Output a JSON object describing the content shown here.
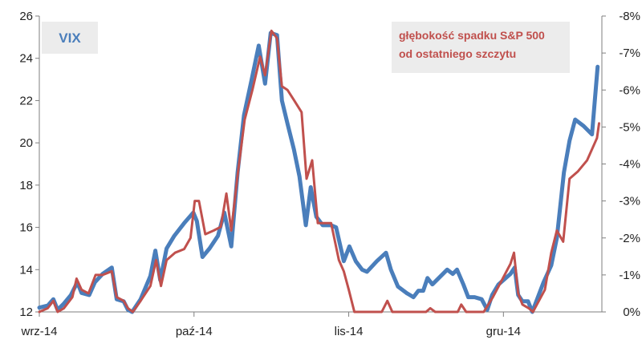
{
  "chart_data": {
    "type": "line",
    "title": "",
    "xlabel": "",
    "ylabel": "",
    "x_ticks": [
      "wrz-14",
      "paź-14",
      "lis-14",
      "gru-14"
    ],
    "x_tick_positions": [
      0,
      22,
      44,
      66
    ],
    "x_range": [
      0,
      80
    ],
    "y_left": {
      "range": [
        12,
        26
      ],
      "ticks": [
        "12",
        "14",
        "16",
        "18",
        "20",
        "22",
        "24",
        "26"
      ]
    },
    "y_right": {
      "range": [
        0,
        -8
      ],
      "ticks": [
        "0%",
        "-1%",
        "-2%",
        "-3%",
        "-4%",
        "-5%",
        "-6%",
        "-7%",
        "-8%"
      ]
    },
    "grid": false,
    "series": [
      {
        "name": "VIX",
        "axis": "left",
        "color": "#4a7ebb",
        "values": [
          [
            0.0,
            12.2
          ],
          [
            1.2,
            12.3
          ],
          [
            2.0,
            12.6
          ],
          [
            2.6,
            12.1
          ],
          [
            3.5,
            12.4
          ],
          [
            4.5,
            12.8
          ],
          [
            5.4,
            13.4
          ],
          [
            6.0,
            12.9
          ],
          [
            7.1,
            12.8
          ],
          [
            7.9,
            13.4
          ],
          [
            9.0,
            13.8
          ],
          [
            10.3,
            14.1
          ],
          [
            11.0,
            12.6
          ],
          [
            12.0,
            12.5
          ],
          [
            12.6,
            12.1
          ],
          [
            13.2,
            12.0
          ],
          [
            14.4,
            12.6
          ],
          [
            15.8,
            13.7
          ],
          [
            16.5,
            14.9
          ],
          [
            17.2,
            13.5
          ],
          [
            18.1,
            15.0
          ],
          [
            19.2,
            15.6
          ],
          [
            20.6,
            16.2
          ],
          [
            21.9,
            16.7
          ],
          [
            22.4,
            16.3
          ],
          [
            23.2,
            14.6
          ],
          [
            24.2,
            15.0
          ],
          [
            25.4,
            15.6
          ],
          [
            26.3,
            16.7
          ],
          [
            27.3,
            15.1
          ],
          [
            28.2,
            18.6
          ],
          [
            29.1,
            21.3
          ],
          [
            30.2,
            23.0
          ],
          [
            31.2,
            24.6
          ],
          [
            32.1,
            22.8
          ],
          [
            32.9,
            25.2
          ],
          [
            33.8,
            25.1
          ],
          [
            34.5,
            22.0
          ],
          [
            35.3,
            20.9
          ],
          [
            36.2,
            19.7
          ],
          [
            37.0,
            18.4
          ],
          [
            37.9,
            16.1
          ],
          [
            38.6,
            17.9
          ],
          [
            39.4,
            16.5
          ],
          [
            40.3,
            16.1
          ],
          [
            41.5,
            16.1
          ],
          [
            42.2,
            16.0
          ],
          [
            43.3,
            14.4
          ],
          [
            44.1,
            15.1
          ],
          [
            45.0,
            14.4
          ],
          [
            45.9,
            14.0
          ],
          [
            46.6,
            13.9
          ],
          [
            48.0,
            14.4
          ],
          [
            49.3,
            14.8
          ],
          [
            50.0,
            14.0
          ],
          [
            51.0,
            13.2
          ],
          [
            52.2,
            12.9
          ],
          [
            53.2,
            12.7
          ],
          [
            53.9,
            13.0
          ],
          [
            54.6,
            13.0
          ],
          [
            55.2,
            13.6
          ],
          [
            55.9,
            13.3
          ],
          [
            56.8,
            13.6
          ],
          [
            58.0,
            14.0
          ],
          [
            58.8,
            13.8
          ],
          [
            59.4,
            14.0
          ],
          [
            60.3,
            13.3
          ],
          [
            61.0,
            12.7
          ],
          [
            61.9,
            12.7
          ],
          [
            62.9,
            12.6
          ],
          [
            63.7,
            12.1
          ],
          [
            64.4,
            12.8
          ],
          [
            65.3,
            13.3
          ],
          [
            67.0,
            13.8
          ],
          [
            67.6,
            14.1
          ],
          [
            68.1,
            12.8
          ],
          [
            68.7,
            12.5
          ],
          [
            69.5,
            12.5
          ],
          [
            70.1,
            12.0
          ],
          [
            71.7,
            13.4
          ],
          [
            72.8,
            14.2
          ],
          [
            73.6,
            15.5
          ],
          [
            74.6,
            18.6
          ],
          [
            75.4,
            20.1
          ],
          [
            76.2,
            21.1
          ],
          [
            77.4,
            20.8
          ],
          [
            78.6,
            20.4
          ],
          [
            79.4,
            23.6
          ]
        ]
      },
      {
        "name": "głębokość spadku S&P 500 od ostatniego szczytu",
        "axis": "right",
        "color": "#c0504d",
        "values": [
          [
            0.0,
            0.0
          ],
          [
            1.2,
            -0.1
          ],
          [
            2.0,
            -0.3
          ],
          [
            2.6,
            0.0
          ],
          [
            3.5,
            -0.1
          ],
          [
            4.7,
            -0.4
          ],
          [
            5.3,
            -0.9
          ],
          [
            6.0,
            -0.6
          ],
          [
            7.0,
            -0.5
          ],
          [
            8.0,
            -1.0
          ],
          [
            9.0,
            -1.0
          ],
          [
            10.3,
            -1.1
          ],
          [
            11.0,
            -0.4
          ],
          [
            12.0,
            -0.3
          ],
          [
            12.6,
            -0.1
          ],
          [
            13.3,
            0.0
          ],
          [
            14.4,
            -0.3
          ],
          [
            15.8,
            -0.7
          ],
          [
            16.6,
            -1.4
          ],
          [
            17.3,
            -0.7
          ],
          [
            18.1,
            -1.4
          ],
          [
            19.3,
            -1.6
          ],
          [
            20.6,
            -1.7
          ],
          [
            21.5,
            -2.0
          ],
          [
            22.1,
            -3.0
          ],
          [
            22.7,
            -3.0
          ],
          [
            23.6,
            -2.1
          ],
          [
            24.8,
            -2.2
          ],
          [
            25.8,
            -2.3
          ],
          [
            26.6,
            -3.2
          ],
          [
            27.3,
            -2.2
          ],
          [
            28.2,
            -3.7
          ],
          [
            29.2,
            -5.2
          ],
          [
            30.3,
            -6.0
          ],
          [
            31.4,
            -6.9
          ],
          [
            32.1,
            -6.4
          ],
          [
            33.0,
            -7.6
          ],
          [
            33.8,
            -7.4
          ],
          [
            34.5,
            -6.1
          ],
          [
            35.3,
            -6.0
          ],
          [
            36.3,
            -5.7
          ],
          [
            37.3,
            -5.4
          ],
          [
            38.0,
            -3.6
          ],
          [
            38.8,
            -4.1
          ],
          [
            39.6,
            -2.4
          ],
          [
            40.5,
            -2.4
          ],
          [
            41.5,
            -2.4
          ],
          [
            42.6,
            -1.4
          ],
          [
            43.3,
            -1.1
          ],
          [
            44.0,
            -0.6
          ],
          [
            44.8,
            0.0
          ],
          [
            46.2,
            0.0
          ],
          [
            47.4,
            0.0
          ],
          [
            48.7,
            0.0
          ],
          [
            49.5,
            -0.3
          ],
          [
            50.2,
            0.0
          ],
          [
            51.5,
            0.0
          ],
          [
            52.8,
            0.0
          ],
          [
            54.0,
            0.0
          ],
          [
            55.0,
            0.0
          ],
          [
            55.6,
            -0.1
          ],
          [
            56.3,
            0.0
          ],
          [
            57.6,
            0.0
          ],
          [
            58.8,
            0.0
          ],
          [
            59.5,
            0.0
          ],
          [
            60.0,
            -0.2
          ],
          [
            60.7,
            0.0
          ],
          [
            62.0,
            0.0
          ],
          [
            63.2,
            0.0
          ],
          [
            64.5,
            -0.4
          ],
          [
            65.9,
            -0.9
          ],
          [
            67.0,
            -1.3
          ],
          [
            67.5,
            -1.6
          ],
          [
            68.1,
            -0.5
          ],
          [
            68.7,
            -0.2
          ],
          [
            69.6,
            -0.1
          ],
          [
            70.2,
            0.0
          ],
          [
            71.9,
            -0.6
          ],
          [
            72.8,
            -1.6
          ],
          [
            73.6,
            -2.2
          ],
          [
            74.5,
            -1.9
          ],
          [
            75.4,
            -3.6
          ],
          [
            76.6,
            -3.8
          ],
          [
            77.9,
            -4.1
          ],
          [
            79.3,
            -4.7
          ],
          [
            79.6,
            -5.1
          ]
        ]
      }
    ]
  },
  "legend": {
    "vix_label": "VIX",
    "sp_label_line1": "głębokość spadku S&P 500",
    "sp_label_line2": "od ostatniego szczytu"
  }
}
